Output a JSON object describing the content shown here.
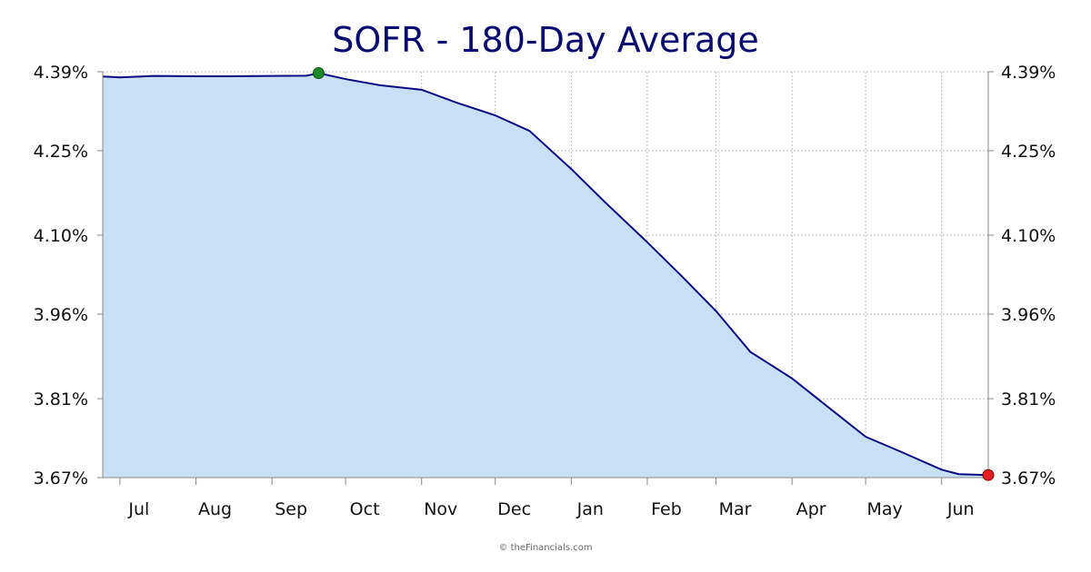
{
  "chart_data": {
    "type": "area",
    "title": "SOFR - 180-Day Average",
    "xlabel": "",
    "ylabel": "",
    "ylim": [
      3.67,
      4.39
    ],
    "y_ticks": [
      "4.39%",
      "4.25%",
      "4.10%",
      "3.96%",
      "3.81%",
      "3.67%"
    ],
    "y_tick_values": [
      4.39,
      4.25,
      4.1,
      3.96,
      3.81,
      3.67
    ],
    "x_ticks": [
      "Jul",
      "Aug",
      "Sep",
      "Oct",
      "Nov",
      "Dec",
      "Jan",
      "Feb",
      "Mar",
      "Apr",
      "May",
      "Jun"
    ],
    "grid": true,
    "colors": {
      "line": "#0a0a80",
      "fill": "#c9dff5",
      "high_marker": "#1a8a2a",
      "low_marker": "#e02020",
      "title": "#0a0a6e"
    },
    "markers": {
      "high": "max",
      "low": "last"
    },
    "x": [
      "2024-06-24",
      "2024-07-01",
      "2024-07-15",
      "2024-08-01",
      "2024-08-15",
      "2024-09-01",
      "2024-09-15",
      "2024-09-20",
      "2024-10-01",
      "2024-10-15",
      "2024-11-01",
      "2024-11-15",
      "2024-12-01",
      "2024-12-15",
      "2025-01-01",
      "2025-01-15",
      "2025-02-01",
      "2025-02-15",
      "2025-03-01",
      "2025-03-15",
      "2025-04-01",
      "2025-04-15",
      "2025-05-01",
      "2025-05-15",
      "2025-06-01",
      "2025-06-08",
      "2025-06-20"
    ],
    "values": [
      4.3815,
      4.38,
      4.3825,
      4.382,
      4.382,
      4.3825,
      4.383,
      4.3875,
      4.377,
      4.366,
      4.358,
      4.3355,
      4.3125,
      4.285,
      4.2175,
      4.1575,
      4.0875,
      4.0275,
      3.9655,
      3.893,
      3.846,
      3.7975,
      3.7425,
      3.7165,
      3.684,
      3.676,
      3.6745
    ]
  },
  "footer": {
    "copyright": "© theFinancials.com"
  }
}
